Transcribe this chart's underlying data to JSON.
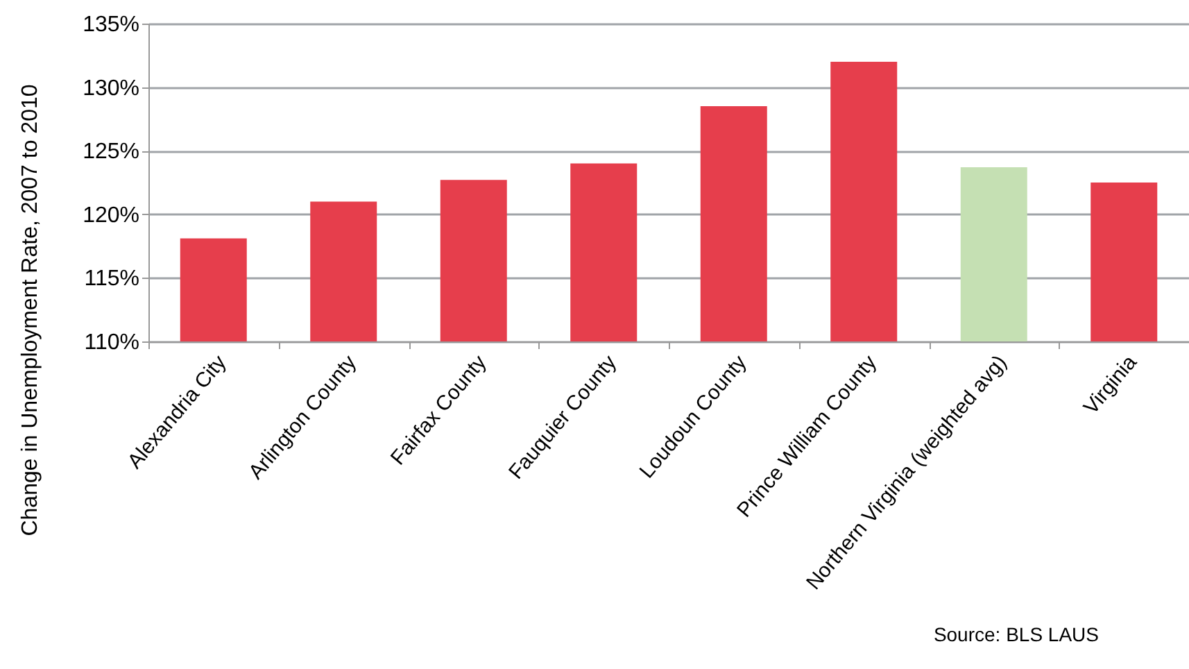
{
  "chart_data": {
    "type": "bar",
    "ylabel": "Change in Unemployment Rate, 2007 to 2010",
    "categories": [
      "Alexandria City",
      "Arlington County",
      "Fairfax County",
      "Fauquier County",
      "Loudoun County",
      "Prince William County",
      "Northern Virginia (weighted avg)",
      "Virginia"
    ],
    "values": [
      118.1,
      121.0,
      122.7,
      124.0,
      128.5,
      132.0,
      123.7,
      122.5
    ],
    "colors": [
      "#e63e4c",
      "#e63e4c",
      "#e63e4c",
      "#e63e4c",
      "#e63e4c",
      "#e63e4c",
      "#c5e0b3",
      "#e63e4c"
    ],
    "ylim": [
      110,
      135
    ],
    "yticks": [
      {
        "value": 110,
        "label": "110%"
      },
      {
        "value": 115,
        "label": "115%"
      },
      {
        "value": 120,
        "label": "120%"
      },
      {
        "value": 125,
        "label": "125%"
      },
      {
        "value": 130,
        "label": "130%"
      },
      {
        "value": 135,
        "label": "135%"
      }
    ],
    "grid": "y",
    "annotations": [
      "Source: BLS LAUS"
    ]
  }
}
